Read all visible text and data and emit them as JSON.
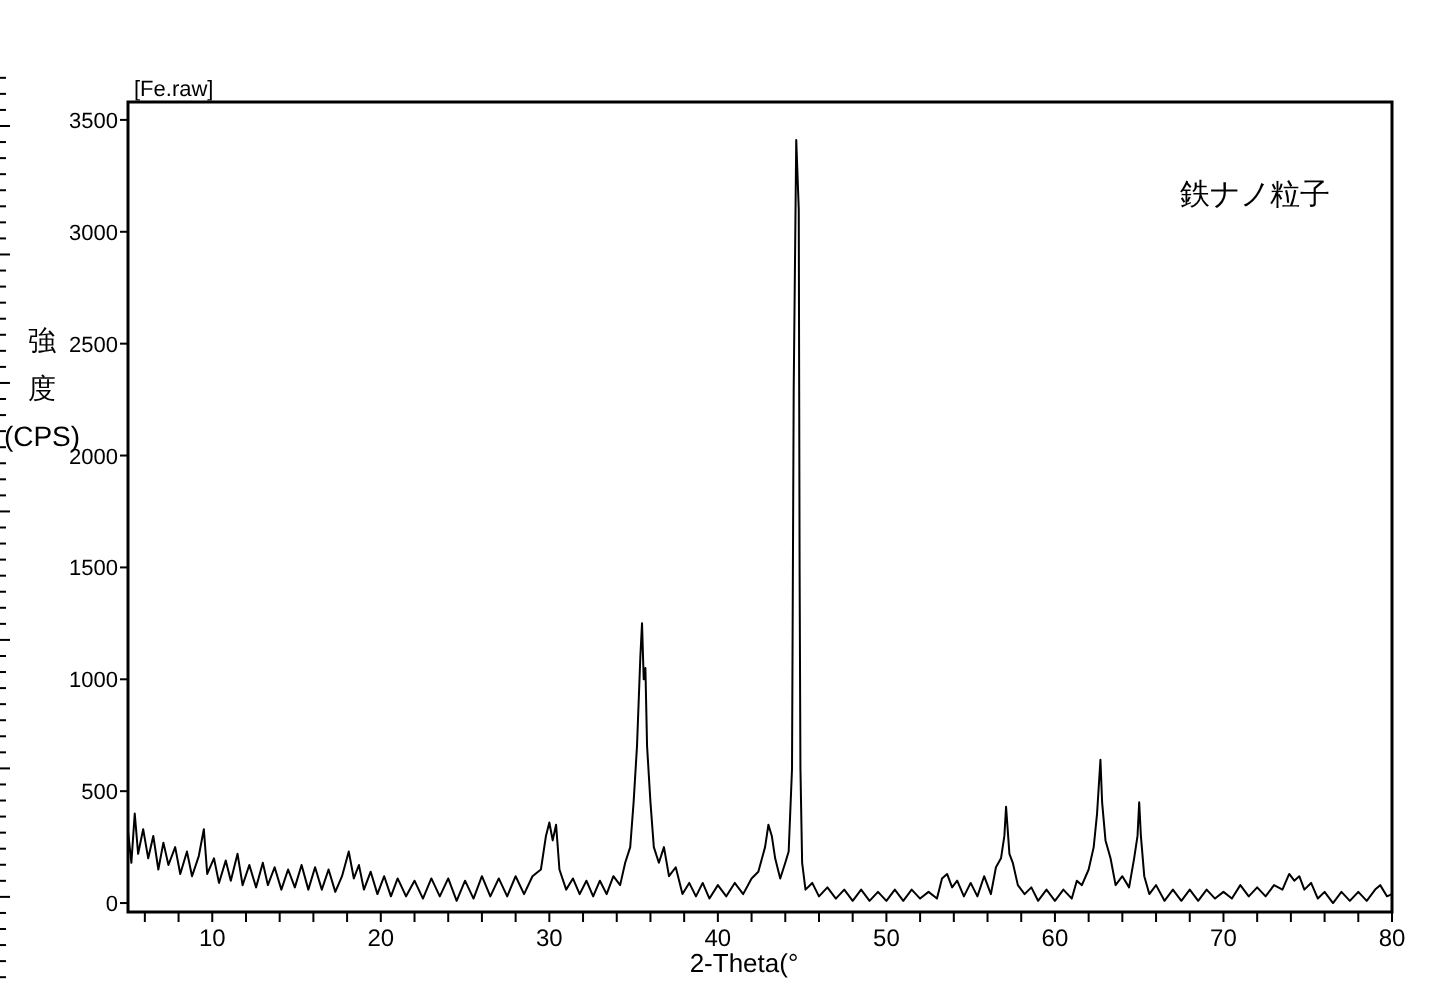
{
  "chart_data": {
    "type": "line",
    "title": "[Fe.raw]",
    "xlabel": "2-Theta(°",
    "ylabel": "強度(CPS)",
    "annotations": [
      "鉄ナノ粒子"
    ],
    "xlim": [
      5,
      80
    ],
    "ylim": [
      -40,
      3580
    ],
    "xticks": [
      {
        "value": 6,
        "label": null
      },
      {
        "value": 8,
        "label": null
      },
      10,
      {
        "value": 12,
        "label": null
      },
      {
        "value": 14,
        "label": null
      },
      {
        "value": 16,
        "label": null
      },
      {
        "value": 18,
        "label": null
      },
      20,
      {
        "value": 22,
        "label": null
      },
      {
        "value": 24,
        "label": null
      },
      {
        "value": 26,
        "label": null
      },
      {
        "value": 28,
        "label": null
      },
      30,
      {
        "value": 32,
        "label": null
      },
      {
        "value": 34,
        "label": null
      },
      {
        "value": 36,
        "label": null
      },
      {
        "value": 38,
        "label": null
      },
      40,
      {
        "value": 42,
        "label": null
      },
      {
        "value": 44,
        "label": null
      },
      {
        "value": 46,
        "label": null
      },
      {
        "value": 48,
        "label": null
      },
      50,
      {
        "value": 52,
        "label": null
      },
      {
        "value": 54,
        "label": null
      },
      {
        "value": 56,
        "label": null
      },
      {
        "value": 58,
        "label": null
      },
      60,
      {
        "value": 62,
        "label": null
      },
      {
        "value": 64,
        "label": null
      },
      {
        "value": 66,
        "label": null
      },
      {
        "value": 68,
        "label": null
      },
      70,
      {
        "value": 72,
        "label": null
      },
      {
        "value": 74,
        "label": null
      },
      {
        "value": 76,
        "label": null
      },
      {
        "value": 78,
        "label": null
      },
      80
    ],
    "yticks": [
      0,
      500,
      1000,
      1500,
      2000,
      2500,
      3000,
      3500
    ],
    "x": [
      5.0,
      5.2,
      5.4,
      5.6,
      5.9,
      6.2,
      6.5,
      6.8,
      7.1,
      7.4,
      7.8,
      8.1,
      8.5,
      8.8,
      9.2,
      9.5,
      9.7,
      10.1,
      10.4,
      10.8,
      11.1,
      11.5,
      11.8,
      12.2,
      12.6,
      13.0,
      13.3,
      13.7,
      14.1,
      14.5,
      14.9,
      15.3,
      15.7,
      16.1,
      16.5,
      16.9,
      17.3,
      17.7,
      18.1,
      18.4,
      18.7,
      19.0,
      19.4,
      19.8,
      20.2,
      20.6,
      21.0,
      21.5,
      22.0,
      22.5,
      23.0,
      23.5,
      24.0,
      24.5,
      25.0,
      25.5,
      26.0,
      26.5,
      27.0,
      27.5,
      28.0,
      28.5,
      29.0,
      29.5,
      29.8,
      30.0,
      30.2,
      30.4,
      30.6,
      31.0,
      31.4,
      31.8,
      32.2,
      32.6,
      33.0,
      33.4,
      33.8,
      34.2,
      34.5,
      34.8,
      35.0,
      35.2,
      35.4,
      35.5,
      35.6,
      35.7,
      35.8,
      36.0,
      36.2,
      36.5,
      36.8,
      37.1,
      37.5,
      37.9,
      38.3,
      38.7,
      39.1,
      39.5,
      40.0,
      40.5,
      41.0,
      41.5,
      42.0,
      42.4,
      42.8,
      43.0,
      43.2,
      43.4,
      43.7,
      44.0,
      44.2,
      44.4,
      44.5,
      44.65,
      44.8,
      44.85,
      44.9,
      45.0,
      45.2,
      45.6,
      46.0,
      46.5,
      47.0,
      47.5,
      48.0,
      48.5,
      49.0,
      49.5,
      50.0,
      50.5,
      51.0,
      51.5,
      52.0,
      52.5,
      53.0,
      53.3,
      53.6,
      53.9,
      54.2,
      54.6,
      55.0,
      55.4,
      55.8,
      56.2,
      56.5,
      56.8,
      57.0,
      57.1,
      57.3,
      57.5,
      57.8,
      58.2,
      58.6,
      59.0,
      59.5,
      60.0,
      60.5,
      61.0,
      61.3,
      61.6,
      62.0,
      62.3,
      62.5,
      62.7,
      62.8,
      63.0,
      63.3,
      63.6,
      64.0,
      64.4,
      64.7,
      64.9,
      65.0,
      65.1,
      65.3,
      65.6,
      66.0,
      66.5,
      67.0,
      67.5,
      68.0,
      68.5,
      69.0,
      69.5,
      70.0,
      70.5,
      71.0,
      71.5,
      72.0,
      72.5,
      73.0,
      73.5,
      73.9,
      74.2,
      74.5,
      74.8,
      75.2,
      75.6,
      76.0,
      76.5,
      77.0,
      77.5,
      78.0,
      78.5,
      79.0,
      79.3,
      79.7,
      80.0
    ],
    "series": [
      {
        "color": "#000000",
        "values": [
          320,
          180,
          400,
          220,
          330,
          200,
          300,
          150,
          270,
          170,
          250,
          130,
          230,
          120,
          210,
          330,
          130,
          200,
          90,
          190,
          100,
          220,
          80,
          170,
          70,
          180,
          80,
          160,
          60,
          150,
          70,
          170,
          60,
          160,
          60,
          150,
          50,
          120,
          230,
          110,
          170,
          60,
          140,
          40,
          120,
          30,
          110,
          30,
          100,
          20,
          110,
          30,
          110,
          10,
          100,
          20,
          120,
          30,
          110,
          30,
          120,
          40,
          120,
          150,
          300,
          360,
          280,
          350,
          150,
          60,
          110,
          40,
          100,
          30,
          100,
          40,
          120,
          80,
          180,
          250,
          450,
          700,
          1100,
          1250,
          1000,
          1050,
          700,
          450,
          250,
          180,
          250,
          120,
          160,
          40,
          90,
          30,
          90,
          20,
          80,
          30,
          90,
          40,
          110,
          140,
          250,
          350,
          300,
          200,
          110,
          180,
          230,
          600,
          2300,
          3410,
          3100,
          1500,
          600,
          180,
          60,
          90,
          30,
          70,
          20,
          60,
          10,
          60,
          10,
          50,
          10,
          60,
          10,
          60,
          20,
          50,
          20,
          110,
          130,
          70,
          100,
          30,
          90,
          30,
          120,
          40,
          160,
          200,
          300,
          430,
          220,
          180,
          80,
          40,
          70,
          10,
          60,
          10,
          60,
          20,
          100,
          80,
          150,
          250,
          400,
          640,
          450,
          280,
          200,
          80,
          120,
          70,
          200,
          300,
          450,
          300,
          120,
          40,
          80,
          10,
          60,
          10,
          60,
          10,
          60,
          20,
          50,
          20,
          80,
          30,
          70,
          30,
          80,
          60,
          130,
          100,
          120,
          60,
          90,
          20,
          50,
          0,
          50,
          10,
          50,
          10,
          60,
          80,
          30,
          40
        ]
      }
    ]
  }
}
